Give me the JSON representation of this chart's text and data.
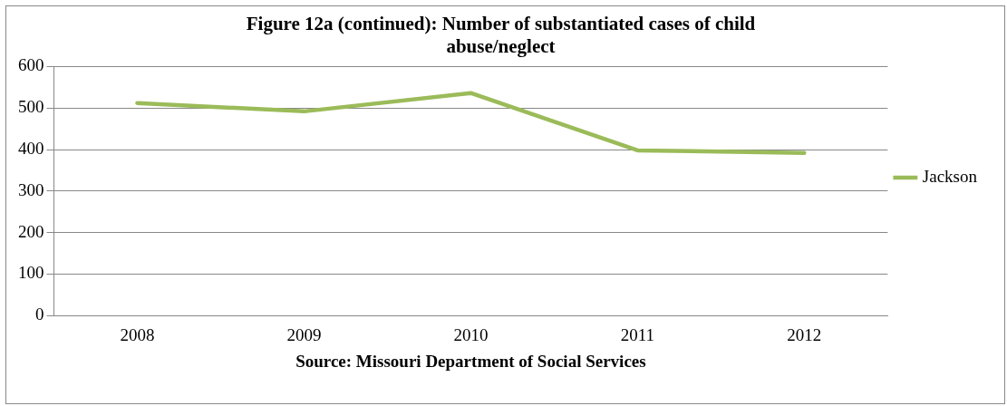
{
  "chart_data": {
    "type": "line",
    "title": "Figure 12a (continued): Number of substantiated cases of child abuse/neglect",
    "categories": [
      "2008",
      "2009",
      "2010",
      "2011",
      "2012"
    ],
    "series": [
      {
        "name": "Jackson",
        "color": "#9bbb59",
        "values": [
          512,
          492,
          536,
          398,
          392
        ]
      }
    ],
    "ylim": [
      0,
      600
    ],
    "yticks": [
      0,
      100,
      200,
      300,
      400,
      500,
      600
    ],
    "grid": "y",
    "legend": "right",
    "marker": "none",
    "line_style": "solid",
    "annotations": [
      "Source: Missouri Department of Social Services"
    ]
  }
}
